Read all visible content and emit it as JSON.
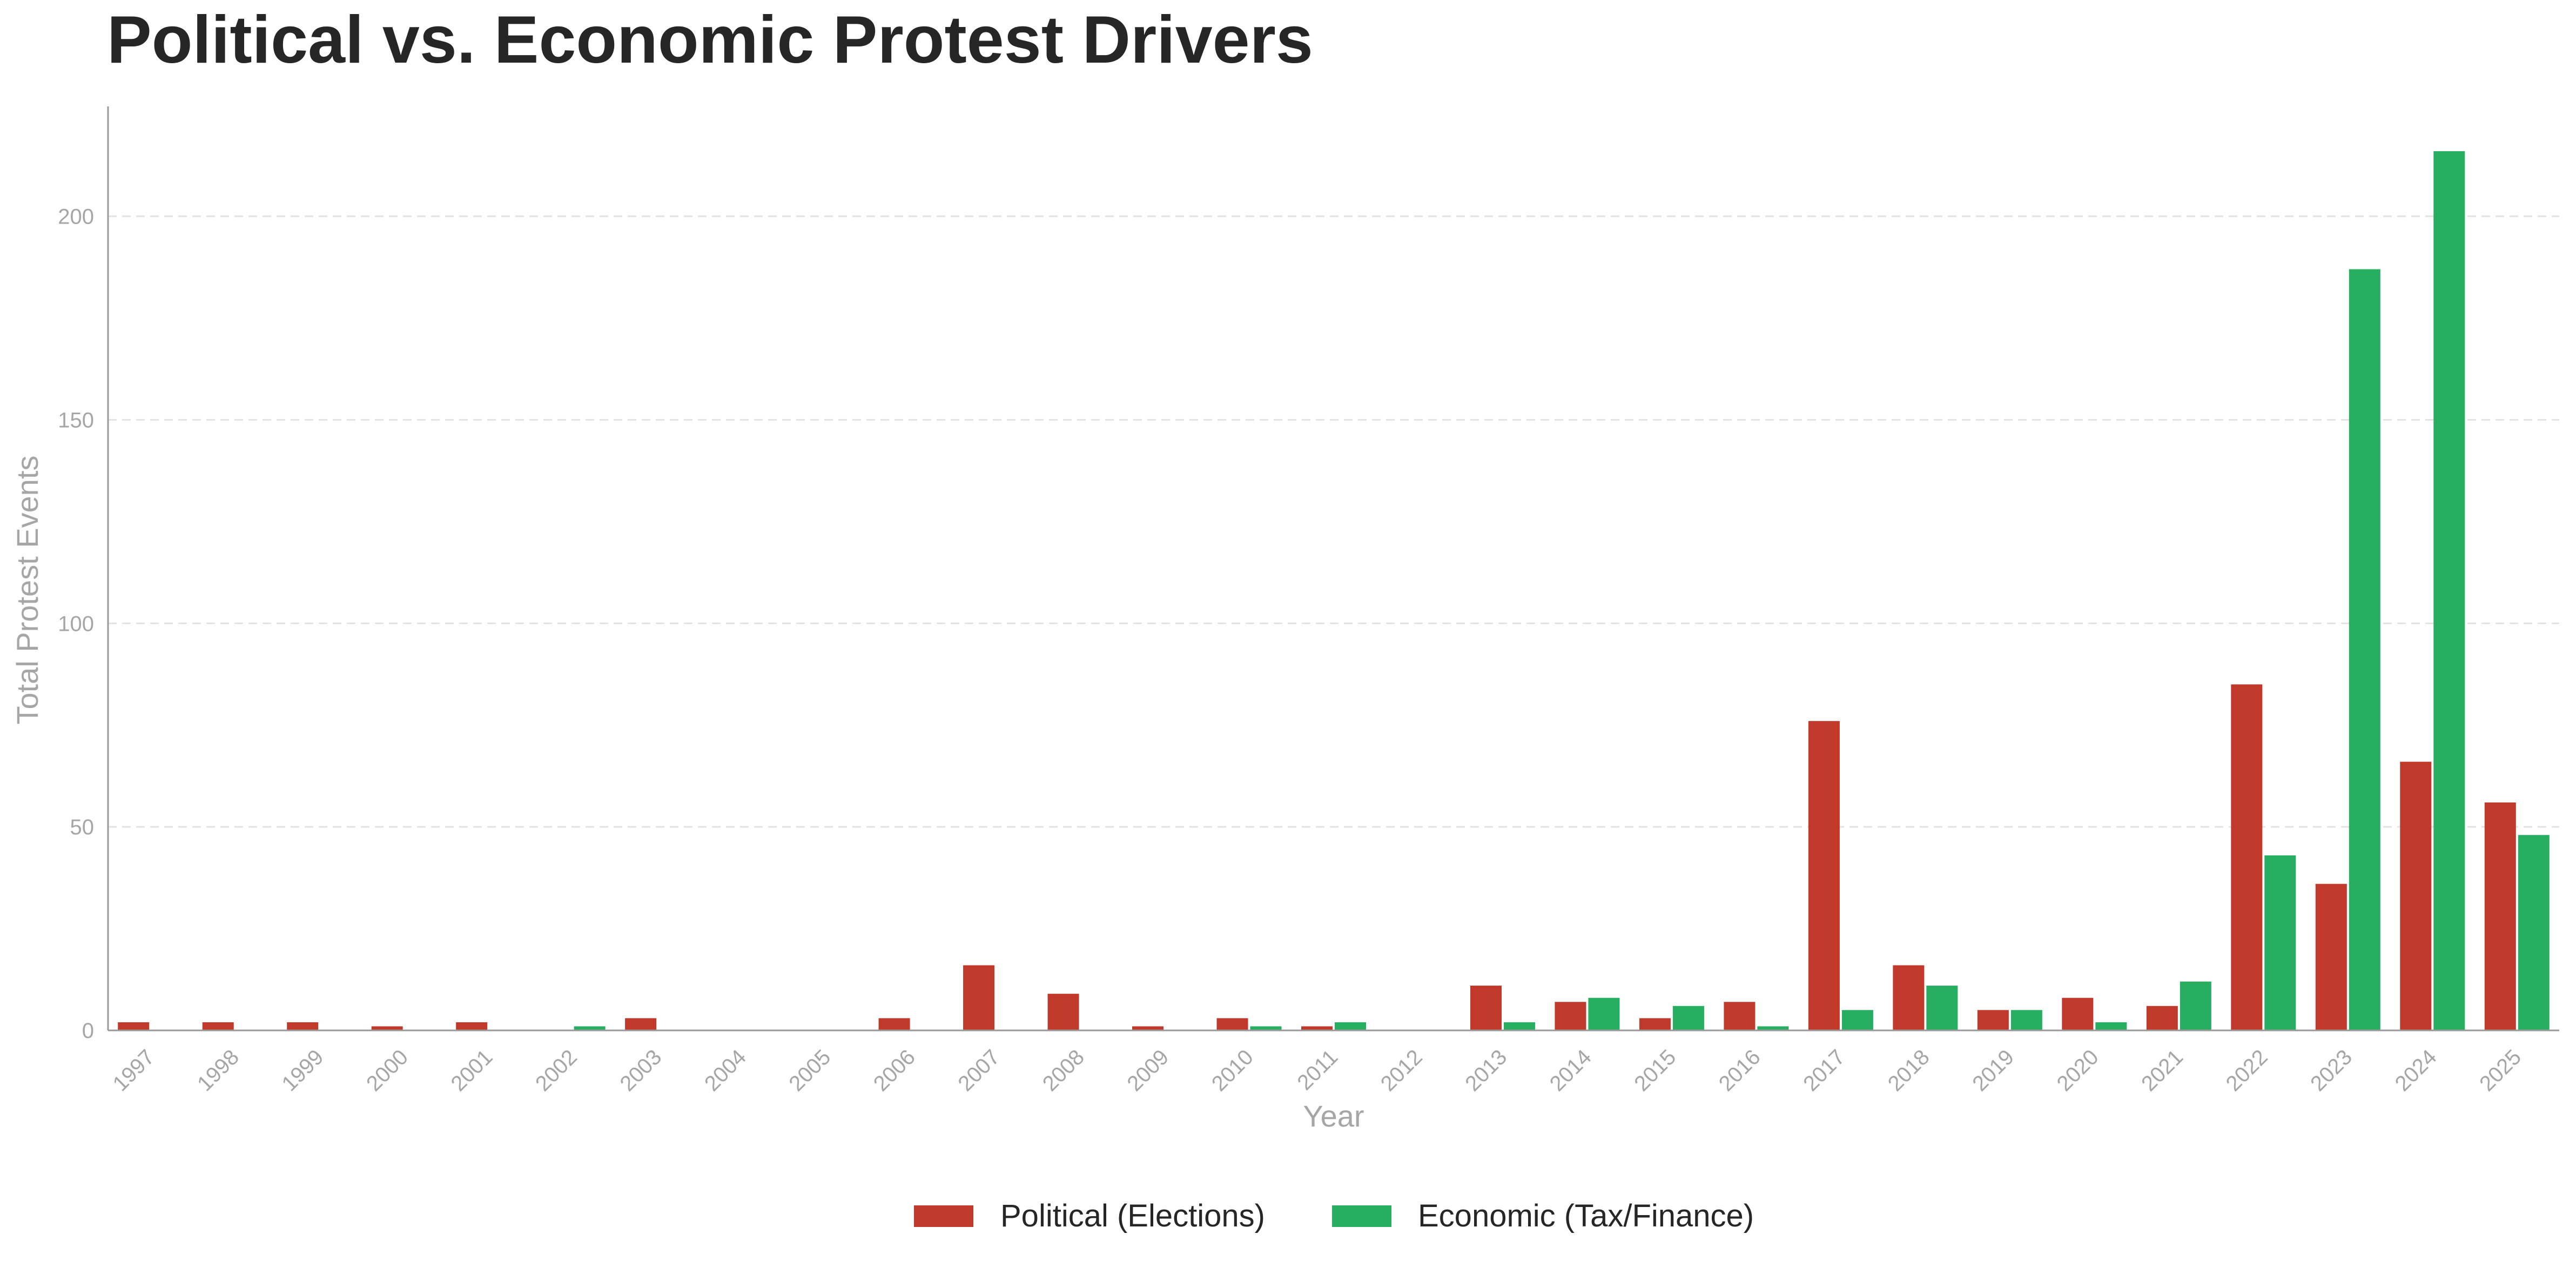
{
  "chart_data": {
    "type": "bar",
    "title": "Political vs. Economic Protest Drivers",
    "xlabel": "Year",
    "ylabel": "Total Protest Events",
    "ylim": [
      0,
      227
    ],
    "yticks": [
      0,
      50,
      100,
      150,
      200
    ],
    "grid": "horizontal dashed",
    "legend_position": "bottom-center",
    "categories": [
      "1997",
      "1998",
      "1999",
      "2000",
      "2001",
      "2002",
      "2003",
      "2004",
      "2005",
      "2006",
      "2007",
      "2008",
      "2009",
      "2010",
      "2011",
      "2012",
      "2013",
      "2014",
      "2015",
      "2016",
      "2017",
      "2018",
      "2019",
      "2020",
      "2021",
      "2022",
      "2023",
      "2024",
      "2025"
    ],
    "series": [
      {
        "name": "Political (Elections)",
        "color": "#c0392b",
        "values": [
          2,
          2,
          2,
          1,
          2,
          0,
          3,
          0,
          0,
          3,
          16,
          9,
          1,
          3,
          1,
          0,
          11,
          7,
          3,
          7,
          76,
          16,
          5,
          8,
          6,
          85,
          36,
          66,
          56
        ]
      },
      {
        "name": "Economic (Tax/Finance)",
        "color": "#27ae60",
        "values": [
          0,
          0,
          0,
          0,
          0,
          1,
          0,
          0,
          0,
          0,
          0,
          0,
          0,
          1,
          2,
          0,
          2,
          8,
          6,
          1,
          5,
          11,
          5,
          2,
          12,
          43,
          187,
          216,
          48
        ]
      }
    ]
  }
}
